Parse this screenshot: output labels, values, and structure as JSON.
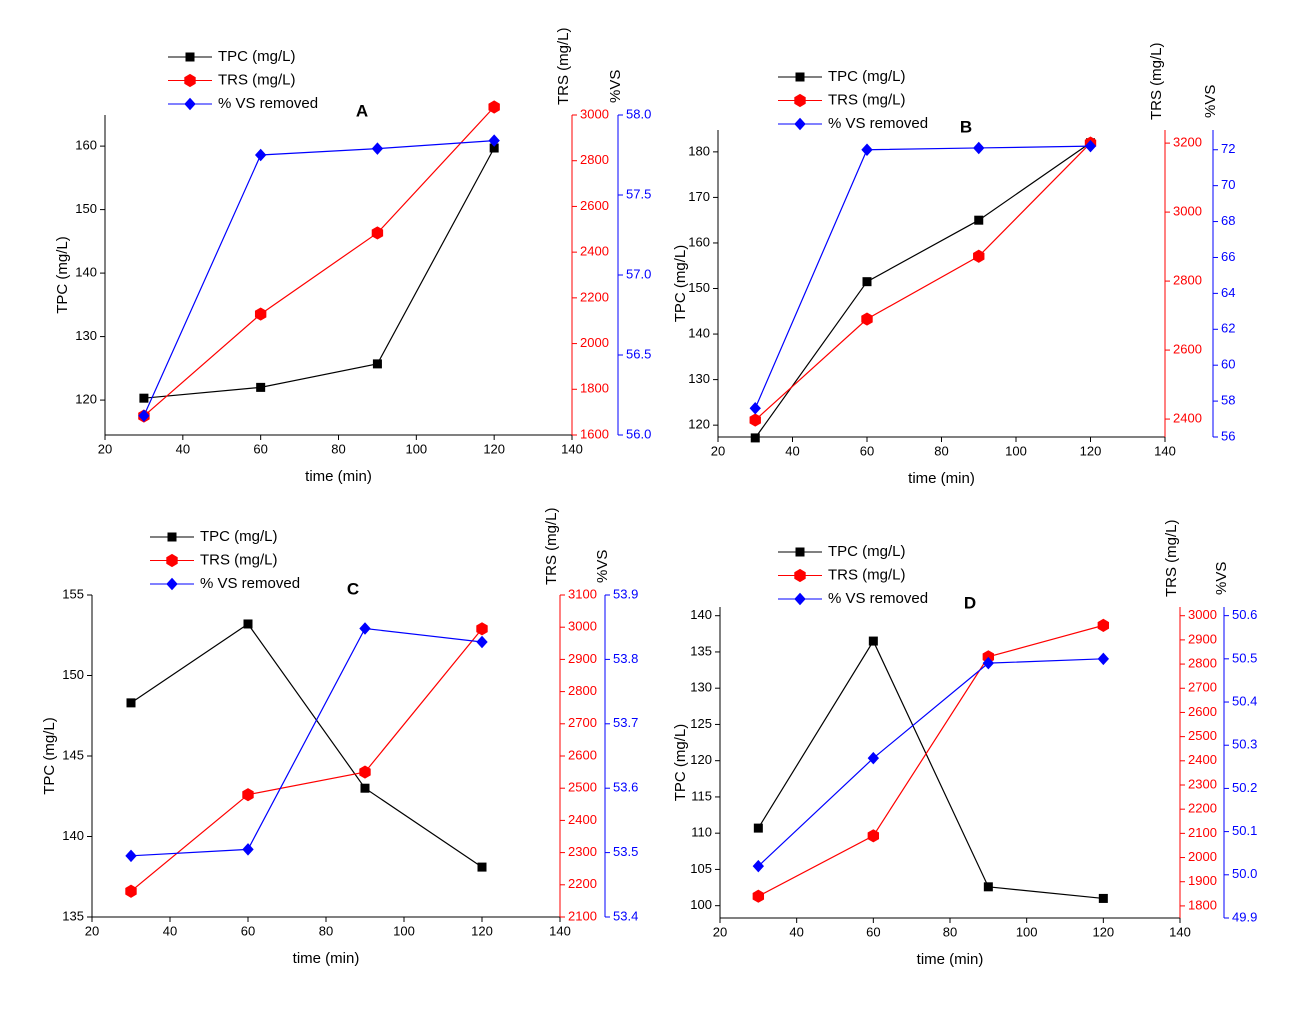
{
  "chart_data": [
    {
      "type": "line",
      "title": "A",
      "xlabel": "time (min)",
      "ylabel": "TPC (mg/L)",
      "y2label": "TRS (mg/L)",
      "y3label": "%VS",
      "x": [
        30,
        60,
        90,
        120
      ],
      "xlim": [
        20,
        140
      ],
      "xticks": [
        20,
        40,
        60,
        80,
        100,
        120,
        140
      ],
      "ylim": [
        114.5,
        164.9
      ],
      "yticks": [
        120,
        130,
        140,
        150,
        160
      ],
      "y2lim": [
        1600,
        3000
      ],
      "y2ticks": [
        1600,
        1800,
        2000,
        2200,
        2400,
        2600,
        2800,
        3000
      ],
      "y3lim": [
        56.0,
        58.0
      ],
      "y3ticks": [
        {
          "value": 56.0,
          "label": "56.0"
        },
        56.5,
        {
          "value": 57.0,
          "label": "57.0"
        },
        57.5,
        {
          "value": 58.0,
          "label": "58.0"
        }
      ],
      "series": [
        {
          "name": "TPC (mg/L)",
          "color": "#000000",
          "marker": "square",
          "values": [
            120.3,
            122.0,
            125.7,
            159.7
          ]
        },
        {
          "name": "TRS (mg/L)",
          "color": "#ff0000",
          "marker": "hexagon",
          "axis": "y2",
          "values": [
            1683,
            2129,
            2484,
            3035
          ]
        },
        {
          "name": "% VS removed",
          "color": "#0000ff",
          "marker": "diamond",
          "axis": "y3",
          "values": [
            56.12,
            57.75,
            57.79,
            57.84
          ]
        }
      ]
    },
    {
      "type": "line",
      "title": "B",
      "xlabel": "time (min)",
      "ylabel": "TPC (mg/L)",
      "y2label": "TRS (mg/L)",
      "y3label": "%VS",
      "x": [
        30,
        60,
        90,
        120
      ],
      "xlim": [
        20,
        140
      ],
      "xticks": [
        20,
        40,
        60,
        80,
        100,
        120,
        140
      ],
      "ylim": [
        117.4,
        184.8
      ],
      "yticks": [
        120,
        130,
        140,
        150,
        160,
        170,
        180
      ],
      "y2lim": [
        2348,
        3238
      ],
      "y2ticks": [
        2400,
        2600,
        2800,
        3000,
        3200
      ],
      "y3lim": [
        56,
        73.1
      ],
      "y3ticks": [
        56,
        58,
        60,
        62,
        64,
        66,
        68,
        70,
        72
      ],
      "series": [
        {
          "name": "TPC (mg/L)",
          "color": "#000000",
          "marker": "square",
          "values": [
            117.2,
            151.5,
            165.0,
            182.0
          ]
        },
        {
          "name": "TRS (mg/L)",
          "color": "#ff0000",
          "marker": "hexagon",
          "axis": "y2",
          "values": [
            2397,
            2690,
            2872,
            3200
          ]
        },
        {
          "name": "% VS removed",
          "color": "#0000ff",
          "marker": "diamond",
          "axis": "y3",
          "values": [
            57.6,
            72.0,
            72.1,
            72.2
          ]
        }
      ]
    },
    {
      "type": "line",
      "title": "C",
      "xlabel": "time (min)",
      "ylabel": "TPC (mg/L)",
      "y2label": "TRS (mg/L)",
      "y3label": "%VS",
      "x": [
        30,
        60,
        90,
        120
      ],
      "xlim": [
        20,
        140
      ],
      "xticks": [
        20,
        40,
        60,
        80,
        100,
        120,
        140
      ],
      "ylim": [
        135,
        155
      ],
      "yticks": [
        135,
        140,
        145,
        150,
        155
      ],
      "y2lim": [
        2100,
        3100
      ],
      "y2ticks": [
        2100,
        2200,
        2300,
        2400,
        2500,
        2600,
        2700,
        2800,
        2900,
        3000,
        3100
      ],
      "y3lim": [
        53.4,
        53.9
      ],
      "y3ticks": [
        53.4,
        53.5,
        53.6,
        53.7,
        53.8,
        53.9
      ],
      "series": [
        {
          "name": "TPC (mg/L)",
          "color": "#000000",
          "marker": "square",
          "values": [
            148.3,
            153.2,
            143.0,
            138.1
          ]
        },
        {
          "name": "TRS (mg/L)",
          "color": "#ff0000",
          "marker": "hexagon",
          "axis": "y2",
          "values": [
            2180,
            2480,
            2550,
            2995
          ]
        },
        {
          "name": "% VS removed",
          "color": "#0000ff",
          "marker": "diamond",
          "axis": "y3",
          "values": [
            53.495,
            53.505,
            53.848,
            53.827
          ]
        }
      ]
    },
    {
      "type": "line",
      "title": "D",
      "xlabel": "time (min)",
      "ylabel": "TPC (mg/L)",
      "y2label": "TRS (mg/L)",
      "y3label": "%VS",
      "x": [
        30,
        60,
        90,
        120
      ],
      "xlim": [
        20,
        140
      ],
      "xticks": [
        20,
        40,
        60,
        80,
        100,
        120,
        140
      ],
      "ylim": [
        98.3,
        141.2
      ],
      "yticks": [
        100,
        105,
        110,
        115,
        120,
        125,
        130,
        135,
        140
      ],
      "y2lim": [
        1750,
        3036
      ],
      "y2ticks": [
        1800,
        1900,
        2000,
        2100,
        2200,
        2300,
        2400,
        2500,
        2600,
        2700,
        2800,
        2900,
        3000
      ],
      "y3lim": [
        49.9,
        50.62
      ],
      "y3ticks": [
        49.9,
        {
          "value": 50.0,
          "label": "50.0"
        },
        50.1,
        50.2,
        50.3,
        50.4,
        50.5,
        50.6
      ],
      "series": [
        {
          "name": "TPC (mg/L)",
          "color": "#000000",
          "marker": "square",
          "values": [
            110.7,
            136.5,
            102.6,
            101.0
          ]
        },
        {
          "name": "TRS (mg/L)",
          "color": "#ff0000",
          "marker": "hexagon",
          "axis": "y2",
          "values": [
            1840,
            2090,
            2830,
            2960
          ]
        },
        {
          "name": "% VS removed",
          "color": "#0000ff",
          "marker": "diamond",
          "axis": "y3",
          "values": [
            50.02,
            50.27,
            50.49,
            50.5
          ]
        }
      ]
    }
  ]
}
